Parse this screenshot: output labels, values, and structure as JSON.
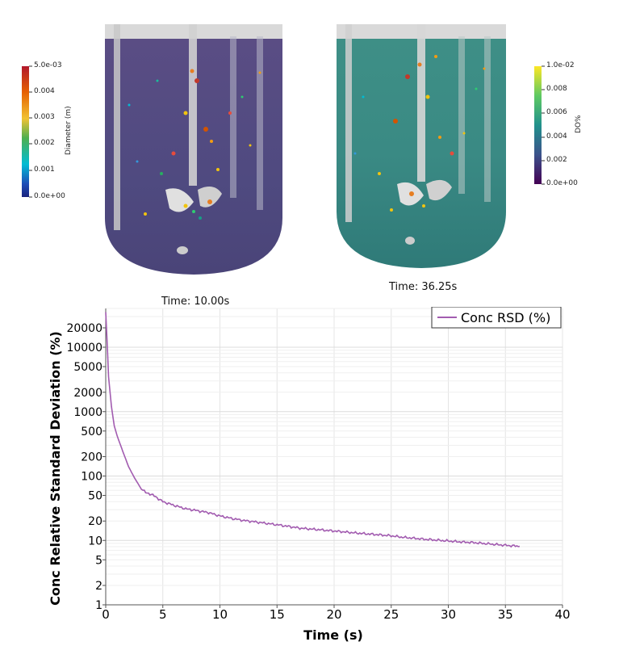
{
  "colorbar_left": {
    "title": "Diameter (m)",
    "ticks": [
      "5.0e-03",
      "0.004",
      "0.003",
      "0.002",
      "0.001",
      "0.0e+00"
    ]
  },
  "colorbar_right": {
    "title": "DO%",
    "ticks": [
      "1.0e-02",
      "0.008",
      "0.006",
      "0.004",
      "0.002",
      "0.0e+00"
    ]
  },
  "time_left": "Time: 10.00s",
  "time_right": "Time: 36.25s",
  "chart_data": {
    "type": "line",
    "xlabel": "Time (s)",
    "ylabel": "Conc Relative Standard Deviation (%)",
    "xlim": [
      0,
      40
    ],
    "ylim": [
      1,
      40000
    ],
    "yscale": "log",
    "x_ticks": [
      0,
      5,
      10,
      15,
      20,
      25,
      30,
      35,
      40
    ],
    "y_ticks": [
      1,
      2,
      5,
      10,
      20,
      50,
      100,
      200,
      500,
      1000,
      2000,
      5000,
      10000,
      20000
    ],
    "grid": true,
    "legend_position": "top-right",
    "series": [
      {
        "name": "Conc RSD (%)",
        "color": "#a25cb0",
        "x": [
          0,
          0.1,
          0.25,
          0.5,
          0.75,
          1.0,
          1.5,
          2.0,
          2.5,
          3.0,
          3.5,
          4.0,
          4.5,
          5.0,
          6.0,
          7.0,
          8.0,
          9.0,
          10.0,
          11.0,
          12.0,
          13.0,
          14.0,
          15.0,
          16.0,
          17.0,
          18.0,
          19.0,
          20.0,
          21.0,
          22.0,
          23.0,
          24.0,
          25.0,
          26.0,
          27.0,
          28.0,
          29.0,
          30.0,
          31.0,
          32.0,
          33.0,
          34.0,
          35.0,
          36.25
        ],
        "values": [
          35000,
          15000,
          3500,
          1200,
          600,
          420,
          240,
          140,
          95,
          68,
          55,
          52,
          46,
          40,
          35,
          31,
          29,
          27,
          24,
          22,
          20.5,
          19.5,
          18.5,
          17.5,
          16.5,
          15.5,
          15,
          14.5,
          14,
          13.5,
          13,
          12.6,
          12.2,
          11.8,
          11.2,
          10.8,
          10.4,
          10.1,
          9.8,
          9.5,
          9.3,
          9.0,
          8.7,
          8.4,
          8.1
        ]
      }
    ]
  }
}
